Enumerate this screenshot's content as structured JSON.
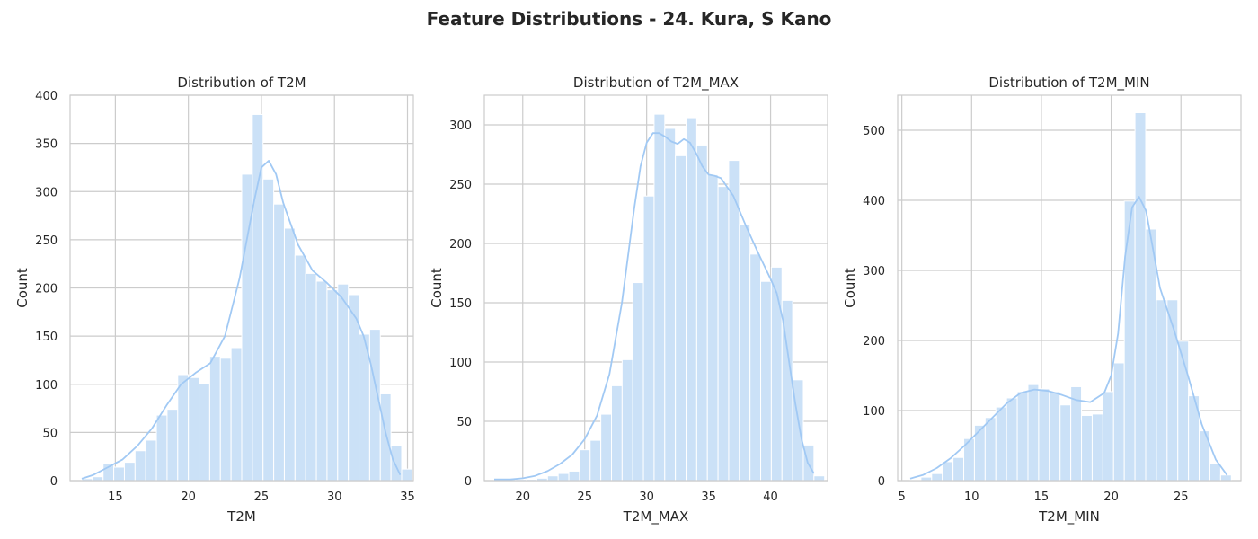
{
  "figure": {
    "title": "Feature Distributions - 24. Kura, S Kano"
  },
  "colors": {
    "bar": "#cbe1f7",
    "kde": "#a1c9f4"
  },
  "chart_data": [
    {
      "type": "bar",
      "title": "Distribution of T2M",
      "xlabel": "T2M",
      "ylabel": "Count",
      "xlim": [
        11.9,
        35.4
      ],
      "ylim": [
        0,
        400
      ],
      "xticks": [
        15,
        20,
        25,
        30,
        35
      ],
      "yticks": [
        0,
        50,
        100,
        150,
        200,
        250,
        300,
        350,
        400
      ],
      "bin_start": 12.7,
      "bin_width": 0.73,
      "counts": [
        2,
        4,
        18,
        14,
        19,
        31,
        42,
        68,
        74,
        110,
        107,
        101,
        129,
        127,
        138,
        318,
        380,
        313,
        287,
        262,
        234,
        215,
        207,
        198,
        204,
        193,
        152,
        157,
        90,
        36,
        12
      ],
      "kde_x": [
        12.7,
        13.5,
        14.5,
        15.5,
        16.5,
        17.5,
        18.5,
        19.5,
        20.5,
        21.5,
        22.5,
        23.5,
        24.5,
        25.0,
        25.5,
        26.0,
        26.5,
        27.5,
        28.5,
        29.5,
        30.5,
        31.5,
        32.0,
        32.5,
        33.0,
        33.5,
        34.0,
        34.5
      ],
      "kde_y": [
        2,
        6,
        14,
        22,
        36,
        54,
        78,
        100,
        112,
        122,
        150,
        210,
        290,
        325,
        332,
        318,
        288,
        245,
        218,
        205,
        190,
        168,
        150,
        120,
        85,
        50,
        22,
        6
      ]
    },
    {
      "type": "bar",
      "title": "Distribution of T2M_MAX",
      "xlabel": "T2M_MAX",
      "ylabel": "Count",
      "xlim": [
        16.9,
        44.6
      ],
      "ylim": [
        0,
        325
      ],
      "xticks": [
        20,
        25,
        30,
        35,
        40
      ],
      "yticks": [
        0,
        50,
        100,
        150,
        200,
        250,
        300
      ],
      "bin_start": 17.7,
      "bin_width": 0.86,
      "counts": [
        1,
        1,
        1,
        1,
        2,
        4,
        6,
        8,
        26,
        34,
        56,
        80,
        102,
        167,
        240,
        309,
        297,
        274,
        306,
        283,
        258,
        248,
        270,
        216,
        191,
        168,
        180,
        152,
        85,
        30,
        4
      ],
      "kde_x": [
        17.7,
        19,
        20,
        21,
        22,
        23,
        24,
        25,
        26,
        27,
        28,
        28.5,
        29,
        29.5,
        30,
        30.5,
        31,
        31.5,
        32,
        32.5,
        33,
        33.5,
        34,
        34.5,
        35,
        35.5,
        36,
        37,
        38,
        39,
        40,
        40.5,
        41,
        41.5,
        42,
        42.5,
        43,
        43.5
      ],
      "kde_y": [
        1,
        1,
        2,
        4,
        8,
        14,
        22,
        35,
        55,
        90,
        150,
        190,
        230,
        265,
        285,
        293,
        293,
        290,
        286,
        284,
        288,
        285,
        276,
        265,
        258,
        257,
        255,
        240,
        215,
        192,
        170,
        158,
        135,
        100,
        65,
        35,
        15,
        6
      ]
    },
    {
      "type": "bar",
      "title": "Distribution of T2M_MIN",
      "xlabel": "T2M_MIN",
      "ylabel": "Count",
      "xlim": [
        4.7,
        29.3
      ],
      "ylim": [
        0,
        550
      ],
      "xticks": [
        5,
        10,
        15,
        20,
        25
      ],
      "yticks": [
        0,
        100,
        200,
        300,
        400,
        500
      ],
      "bin_start": 5.6,
      "bin_width": 0.767,
      "counts": [
        1,
        5,
        10,
        27,
        33,
        60,
        79,
        90,
        105,
        118,
        127,
        137,
        131,
        127,
        108,
        134,
        93,
        95,
        127,
        168,
        399,
        525,
        359,
        258,
        258,
        199,
        121,
        71,
        25,
        8
      ],
      "kde_x": [
        5.6,
        6.5,
        7.5,
        8.5,
        9.5,
        10.5,
        11.5,
        12.5,
        13.5,
        14.5,
        15.5,
        16.5,
        17.5,
        18.5,
        19.5,
        20.0,
        20.5,
        21.0,
        21.5,
        22.0,
        22.5,
        23.0,
        23.5,
        24.5,
        25.5,
        26.5,
        27.5,
        28.3
      ],
      "kde_y": [
        3,
        8,
        18,
        32,
        50,
        70,
        90,
        110,
        125,
        130,
        128,
        122,
        115,
        112,
        125,
        150,
        210,
        320,
        390,
        405,
        385,
        330,
        275,
        215,
        150,
        80,
        30,
        8
      ]
    }
  ]
}
